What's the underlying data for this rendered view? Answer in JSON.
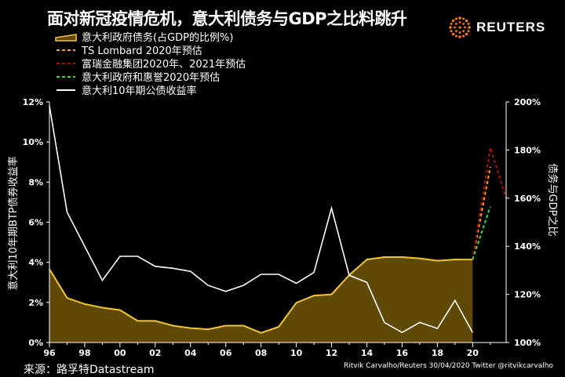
{
  "header": {
    "title": "面对新冠疫情危机，意大利债务与GDP之比料跳升",
    "logo_text": "REUTERS"
  },
  "footer": {
    "source": "来源：路孚特Datastream",
    "credit": "Ritvik Carvalho/Reuters 30/04/2020 Twitter @ritvikcarvalho"
  },
  "colors": {
    "background": "#000000",
    "debt_fill": "#5e4a05",
    "debt_line": "#f2c530",
    "ts_lombard": "#ffa020",
    "intesa": "#b01010",
    "gov": "#30e030",
    "yield": "#ffffff",
    "logo": "#ff7a00"
  },
  "chart_data": {
    "type": "area",
    "ylabel": "意大利10年期BTP债券收益率",
    "y2label": "债务与GDP之比",
    "xlim": [
      1996,
      2021.9
    ],
    "ylim": [
      0,
      12
    ],
    "y2lim": [
      100,
      200
    ],
    "x_ticks": [
      1996,
      1998,
      2000,
      2002,
      2004,
      2006,
      2008,
      2010,
      2012,
      2014,
      2016,
      2018,
      2020
    ],
    "x_tick_labels": [
      "96",
      "98",
      "00",
      "02",
      "04",
      "06",
      "08",
      "10",
      "12",
      "14",
      "16",
      "18",
      "20"
    ],
    "y_ticks": [
      0,
      2,
      4,
      6,
      8,
      10,
      12
    ],
    "y_tick_labels": [
      "0%",
      "2%",
      "4%",
      "6%",
      "8%",
      "10%",
      "12%"
    ],
    "y2_ticks": [
      100,
      120,
      140,
      160,
      180,
      200
    ],
    "y2_tick_labels": [
      "100%",
      "120%",
      "140%",
      "160%",
      "180%",
      "200%"
    ],
    "series": [
      {
        "name": "意大利政府债务(占GDP的比例%)",
        "kind": "area",
        "axis": "right",
        "x": [
          1996,
          1997,
          1998,
          1999,
          2000,
          2001,
          2002,
          2003,
          2004,
          2005,
          2006,
          2007,
          2008,
          2009,
          2010,
          2011,
          2012,
          2013,
          2014,
          2015,
          2016,
          2017,
          2018,
          2019,
          2020
        ],
        "values": [
          130.5,
          118.5,
          116,
          114.5,
          113.5,
          109,
          109,
          107,
          106,
          105.5,
          107,
          107,
          104,
          106.5,
          116.5,
          119.5,
          120,
          128,
          134.5,
          135.5,
          135.5,
          135,
          134,
          134.5,
          134.5
        ]
      },
      {
        "name": "TS Lombard 2020年预估",
        "kind": "dashed",
        "axis": "right",
        "x": [
          2020,
          2021
        ],
        "values": [
          134.5,
          173
        ]
      },
      {
        "name": "富瑞金融集团2020年、2021年预估",
        "kind": "dashed",
        "axis": "right",
        "x": [
          2020,
          2021,
          2021.9
        ],
        "values": [
          134.5,
          181,
          160
        ]
      },
      {
        "name": "意大利政府和惠誉2020年预估",
        "kind": "dashed",
        "axis": "right",
        "x": [
          2020,
          2021
        ],
        "values": [
          134.5,
          156.5
        ]
      },
      {
        "name": "意大利10年期公债收益率",
        "kind": "line",
        "axis": "left",
        "x": [
          1996,
          1997,
          1998,
          1999,
          2000,
          2001,
          2002,
          2003,
          2004,
          2005,
          2006,
          2007,
          2008,
          2009,
          2010,
          2011,
          2012,
          2013,
          2014,
          2015,
          2016,
          2017,
          2018,
          2019,
          2020
        ],
        "values": [
          11.8,
          6.5,
          4.8,
          3.1,
          4.3,
          4.3,
          3.8,
          3.7,
          3.55,
          2.85,
          2.55,
          2.85,
          3.4,
          3.4,
          2.95,
          3.5,
          6.7,
          3.35,
          3.0,
          1.0,
          0.5,
          1.0,
          0.7,
          2.1,
          0.5
        ]
      }
    ]
  }
}
